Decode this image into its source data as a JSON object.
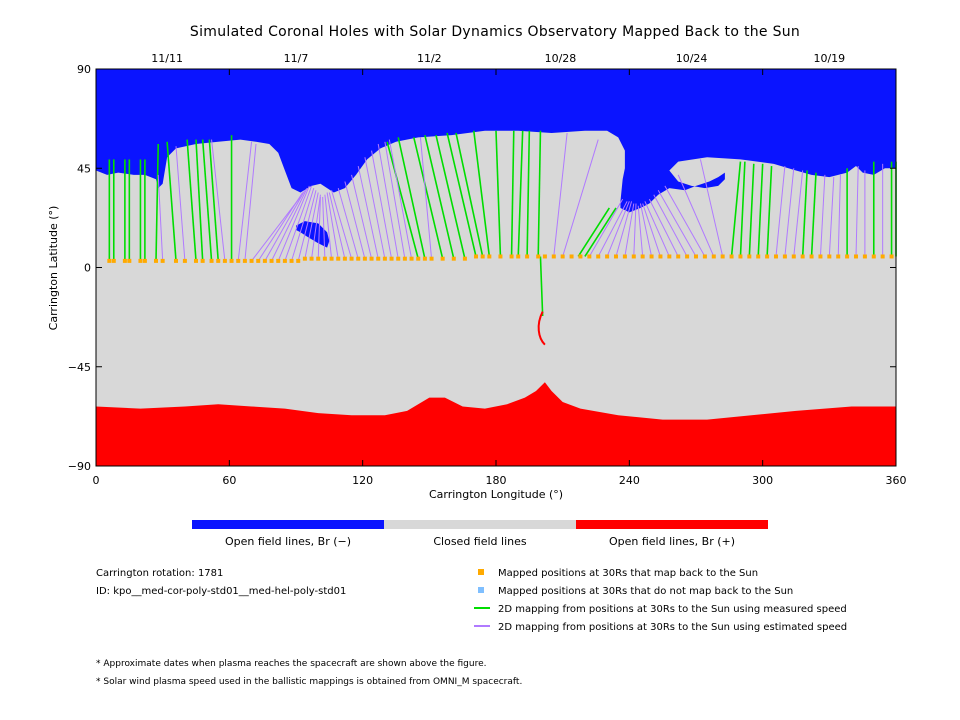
{
  "chart_data": {
    "type": "map",
    "title": "Simulated Coronal Holes with Solar Dynamics Observatory Mapped Back to the Sun",
    "xlabel": "Carrington Longitude (°)",
    "ylabel": "Carrington Latitude (°)",
    "xlim": [
      0,
      360
    ],
    "ylim": [
      -90,
      90
    ],
    "x_ticks": [
      0,
      60,
      120,
      180,
      240,
      300,
      360
    ],
    "y_ticks": [
      90,
      45,
      0,
      -45,
      -90
    ],
    "top_dates": [
      {
        "lon": 32,
        "label": "11/11"
      },
      {
        "lon": 90,
        "label": "11/7"
      },
      {
        "lon": 150,
        "label": "11/2"
      },
      {
        "lon": 209,
        "label": "10/28"
      },
      {
        "lon": 268,
        "label": "10/24"
      },
      {
        "lon": 330,
        "label": "10/19"
      }
    ],
    "north_hole_boundary": [
      [
        0,
        44
      ],
      [
        5,
        42
      ],
      [
        10,
        43
      ],
      [
        17,
        42
      ],
      [
        22,
        42
      ],
      [
        27,
        40
      ],
      [
        28,
        36
      ],
      [
        30,
        38
      ],
      [
        32,
        50
      ],
      [
        36,
        54
      ],
      [
        45,
        56
      ],
      [
        55,
        57
      ],
      [
        65,
        58
      ],
      [
        72,
        57
      ],
      [
        78,
        56
      ],
      [
        82,
        52
      ],
      [
        85,
        44
      ],
      [
        88,
        36
      ],
      [
        92,
        34
      ],
      [
        97,
        37
      ],
      [
        101,
        38
      ],
      [
        107,
        34
      ],
      [
        112,
        36
      ],
      [
        117,
        42
      ],
      [
        122,
        49
      ],
      [
        128,
        54
      ],
      [
        135,
        57
      ],
      [
        145,
        59
      ],
      [
        160,
        60
      ],
      [
        175,
        62
      ],
      [
        190,
        62
      ],
      [
        205,
        61
      ],
      [
        220,
        62
      ],
      [
        230,
        62
      ],
      [
        235,
        59
      ],
      [
        238,
        53
      ],
      [
        238,
        45
      ],
      [
        237,
        40
      ],
      [
        236,
        30
      ],
      [
        236,
        27
      ],
      [
        240,
        25
      ],
      [
        245,
        27
      ],
      [
        249,
        29
      ],
      [
        253,
        33
      ],
      [
        258,
        36
      ],
      [
        265,
        35
      ],
      [
        270,
        37
      ],
      [
        276,
        39
      ],
      [
        280,
        41
      ],
      [
        283,
        43
      ],
      [
        283,
        40
      ],
      [
        280,
        37
      ],
      [
        274,
        36
      ],
      [
        268,
        37
      ],
      [
        262,
        39
      ],
      [
        258,
        44
      ],
      [
        262,
        48
      ],
      [
        275,
        50
      ],
      [
        290,
        49
      ],
      [
        305,
        47
      ],
      [
        315,
        44
      ],
      [
        322,
        42
      ],
      [
        330,
        41
      ],
      [
        338,
        43
      ],
      [
        342,
        46
      ],
      [
        345,
        43
      ],
      [
        350,
        42
      ],
      [
        355,
        45
      ],
      [
        360,
        45
      ]
    ],
    "island_boundary": [
      [
        90,
        19
      ],
      [
        94,
        21
      ],
      [
        100,
        20
      ],
      [
        104,
        16
      ],
      [
        105,
        12
      ],
      [
        104,
        9
      ],
      [
        100,
        11
      ],
      [
        95,
        14
      ],
      [
        92,
        16
      ],
      [
        90,
        17
      ]
    ],
    "south_hole_boundary": [
      [
        0,
        -63
      ],
      [
        20,
        -64
      ],
      [
        40,
        -63
      ],
      [
        55,
        -62
      ],
      [
        70,
        -63
      ],
      [
        85,
        -64
      ],
      [
        100,
        -66
      ],
      [
        115,
        -67
      ],
      [
        130,
        -67
      ],
      [
        140,
        -65
      ],
      [
        150,
        -59
      ],
      [
        157,
        -59
      ],
      [
        165,
        -63
      ],
      [
        175,
        -64
      ],
      [
        185,
        -62
      ],
      [
        193,
        -59
      ],
      [
        198,
        -56
      ],
      [
        202,
        -52
      ],
      [
        205,
        -56
      ],
      [
        210,
        -61
      ],
      [
        218,
        -64
      ],
      [
        235,
        -67
      ],
      [
        255,
        -69
      ],
      [
        275,
        -69
      ],
      [
        295,
        -67
      ],
      [
        315,
        -65
      ],
      [
        340,
        -63
      ],
      [
        360,
        -63
      ]
    ],
    "footpoints_lon": [
      6,
      8,
      13,
      15,
      20,
      22,
      27,
      30,
      36,
      40,
      45,
      48,
      52,
      55,
      58,
      61,
      64,
      67,
      70,
      73,
      76,
      79,
      82,
      85,
      88,
      91,
      94,
      97,
      100,
      103,
      106,
      109,
      112,
      115,
      118,
      121,
      124,
      127,
      130,
      133,
      136,
      139,
      142,
      145,
      148,
      151,
      156,
      161,
      166,
      171,
      174,
      177,
      182,
      187,
      190,
      194,
      199,
      202,
      206,
      210,
      214,
      218,
      222,
      226,
      230,
      234,
      238,
      242,
      246,
      250,
      254,
      258,
      262,
      266,
      270,
      274,
      278,
      282,
      286,
      290,
      294,
      298,
      302,
      306,
      310,
      314,
      318,
      322,
      326,
      330,
      334,
      338,
      342,
      346,
      350,
      354,
      358
    ],
    "footpoints_lat": [
      3,
      3,
      3,
      3,
      3,
      3,
      3,
      3,
      3,
      3,
      3,
      3,
      3,
      3,
      3,
      3,
      3,
      3,
      3,
      3,
      3,
      3,
      3,
      3,
      3,
      3,
      4,
      4,
      4,
      4,
      4,
      4,
      4,
      4,
      4,
      4,
      4,
      4,
      4,
      4,
      4,
      4,
      4,
      4,
      4,
      4,
      4,
      4,
      4,
      5,
      5,
      5,
      5,
      5,
      5,
      5,
      5,
      5,
      5,
      5,
      5,
      5,
      5,
      5,
      5,
      5,
      5,
      5,
      5,
      5,
      5,
      5,
      5,
      5,
      5,
      5,
      5,
      5,
      5,
      5,
      5,
      5,
      5,
      5,
      5,
      5,
      5,
      5,
      5,
      5,
      5,
      5,
      5,
      5,
      5,
      5,
      5
    ],
    "series": [
      {
        "name": "2D mapping from positions at 30Rs to the Sun using measured speed",
        "color": "#00dd00",
        "segments": [
          [
            6,
            3,
            6,
            49
          ],
          [
            8,
            3,
            8,
            49
          ],
          [
            13,
            3,
            13,
            49
          ],
          [
            15,
            3,
            15,
            49
          ],
          [
            20,
            3,
            20,
            49
          ],
          [
            22,
            3,
            22,
            49
          ],
          [
            27,
            3,
            28,
            56
          ],
          [
            36,
            3,
            32,
            57
          ],
          [
            45,
            3,
            41,
            58
          ],
          [
            48,
            3,
            45,
            58
          ],
          [
            52,
            3,
            48,
            58
          ],
          [
            55,
            3,
            51,
            58
          ],
          [
            61,
            3,
            61,
            60
          ],
          [
            145,
            4,
            131,
            57
          ],
          [
            148,
            4,
            136,
            59
          ],
          [
            156,
            4,
            143,
            59
          ],
          [
            161,
            4,
            148,
            60
          ],
          [
            166,
            4,
            153,
            60
          ],
          [
            171,
            5,
            158,
            61
          ],
          [
            174,
            5,
            162,
            61
          ],
          [
            177,
            5,
            170,
            62
          ],
          [
            182,
            5,
            180,
            62
          ],
          [
            187,
            5,
            188,
            62
          ],
          [
            190,
            5,
            192,
            62
          ],
          [
            194,
            5,
            195,
            62
          ],
          [
            199,
            5,
            200,
            62
          ],
          [
            200,
            5,
            201,
            -22
          ],
          [
            217,
            5,
            231,
            27
          ],
          [
            220,
            5,
            234,
            27
          ],
          [
            286,
            5,
            290,
            48
          ],
          [
            290,
            5,
            292,
            48
          ],
          [
            294,
            5,
            296,
            47
          ],
          [
            298,
            5,
            300,
            47
          ],
          [
            302,
            5,
            304,
            46
          ],
          [
            318,
            5,
            320,
            44
          ],
          [
            322,
            5,
            324,
            43
          ],
          [
            338,
            5,
            338,
            45
          ],
          [
            350,
            5,
            350,
            48
          ],
          [
            358,
            5,
            358,
            48
          ],
          [
            360,
            5,
            360,
            48
          ]
        ]
      },
      {
        "name": "2D mapping from positions at 30Rs to the Sun using estimated speed",
        "color": "#b07aff",
        "segments": [
          [
            30,
            3,
            28,
            42
          ],
          [
            40,
            3,
            36,
            55
          ],
          [
            58,
            3,
            52,
            58
          ],
          [
            64,
            3,
            70,
            57
          ],
          [
            67,
            3,
            72,
            56
          ],
          [
            70,
            3,
            92,
            32
          ],
          [
            73,
            3,
            93,
            34
          ],
          [
            76,
            3,
            94,
            35
          ],
          [
            79,
            3,
            95,
            36
          ],
          [
            82,
            3,
            96,
            37
          ],
          [
            85,
            3,
            97,
            37
          ],
          [
            88,
            3,
            98,
            36
          ],
          [
            91,
            3,
            99,
            35
          ],
          [
            94,
            4,
            100,
            34
          ],
          [
            97,
            4,
            101,
            33
          ],
          [
            100,
            4,
            101,
            32
          ],
          [
            103,
            4,
            102,
            32
          ],
          [
            106,
            4,
            103,
            33
          ],
          [
            109,
            4,
            104,
            34
          ],
          [
            112,
            4,
            105,
            34
          ],
          [
            115,
            4,
            106,
            35
          ],
          [
            118,
            4,
            109,
            36
          ],
          [
            121,
            4,
            112,
            39
          ],
          [
            124,
            4,
            115,
            42
          ],
          [
            127,
            4,
            118,
            46
          ],
          [
            130,
            4,
            121,
            50
          ],
          [
            133,
            4,
            124,
            53
          ],
          [
            136,
            4,
            127,
            56
          ],
          [
            139,
            4,
            130,
            57
          ],
          [
            142,
            4,
            132,
            58
          ],
          [
            151,
            4,
            146,
            59
          ],
          [
            206,
            5,
            212,
            61
          ],
          [
            210,
            5,
            226,
            58
          ],
          [
            222,
            5,
            237,
            31
          ],
          [
            226,
            5,
            239,
            30
          ],
          [
            230,
            5,
            240,
            30
          ],
          [
            234,
            5,
            241,
            30
          ],
          [
            238,
            5,
            242,
            29
          ],
          [
            242,
            5,
            243,
            29
          ],
          [
            246,
            5,
            244,
            28
          ],
          [
            250,
            5,
            245,
            29
          ],
          [
            254,
            5,
            246,
            29
          ],
          [
            258,
            5,
            247,
            30
          ],
          [
            262,
            5,
            249,
            31
          ],
          [
            266,
            5,
            251,
            33
          ],
          [
            270,
            5,
            253,
            35
          ],
          [
            274,
            5,
            256,
            37
          ],
          [
            278,
            5,
            262,
            42
          ],
          [
            282,
            5,
            272,
            49
          ],
          [
            306,
            5,
            310,
            46
          ],
          [
            310,
            5,
            314,
            45
          ],
          [
            314,
            5,
            318,
            44
          ],
          [
            326,
            5,
            328,
            42
          ],
          [
            330,
            5,
            332,
            41
          ],
          [
            334,
            5,
            335,
            42
          ],
          [
            342,
            5,
            343,
            46
          ],
          [
            346,
            5,
            346,
            44
          ],
          [
            354,
            5,
            354,
            47
          ]
        ]
      }
    ],
    "legend": [
      {
        "label": "Mapped positions at 30Rs that map back to the Sun",
        "color": "#ffaa00",
        "marker": "square"
      },
      {
        "label": "Mapped positions at 30Rs that do not map back to the Sun",
        "color": "#7fbfff",
        "marker": "square"
      },
      {
        "label": "2D mapping from positions at 30Rs to the Sun using measured speed",
        "color": "#00dd00",
        "marker": "line"
      },
      {
        "label": "2D mapping from positions at 30Rs to the Sun using estimated speed",
        "color": "#b07aff",
        "marker": "line"
      }
    ],
    "colorbar": [
      {
        "label": "Open field lines, Br (−)",
        "color": "#0000ff"
      },
      {
        "label": "Closed field lines",
        "color": "#d7d7d7"
      },
      {
        "label": "Open field lines, Br (+)",
        "color": "#ff0000"
      }
    ],
    "colors": {
      "open_neg": "#0a14ff",
      "closed": "#d8d8d8",
      "open_pos": "#ff0000",
      "footpoint": "#ffaa00",
      "unmapped": "#7fbfff",
      "measured": "#00dd00",
      "estimated": "#b07aff"
    }
  },
  "info": {
    "carrington_rotation": "Carrington rotation: 1781",
    "id": "ID: kpo__med-cor-poly-std01__med-hel-poly-std01"
  },
  "notes": [
    "* Approximate dates when plasma reaches the spacecraft are shown above the figure.",
    "* Solar wind plasma speed used in the ballistic mappings is obtained from OMNI_M spacecraft."
  ]
}
